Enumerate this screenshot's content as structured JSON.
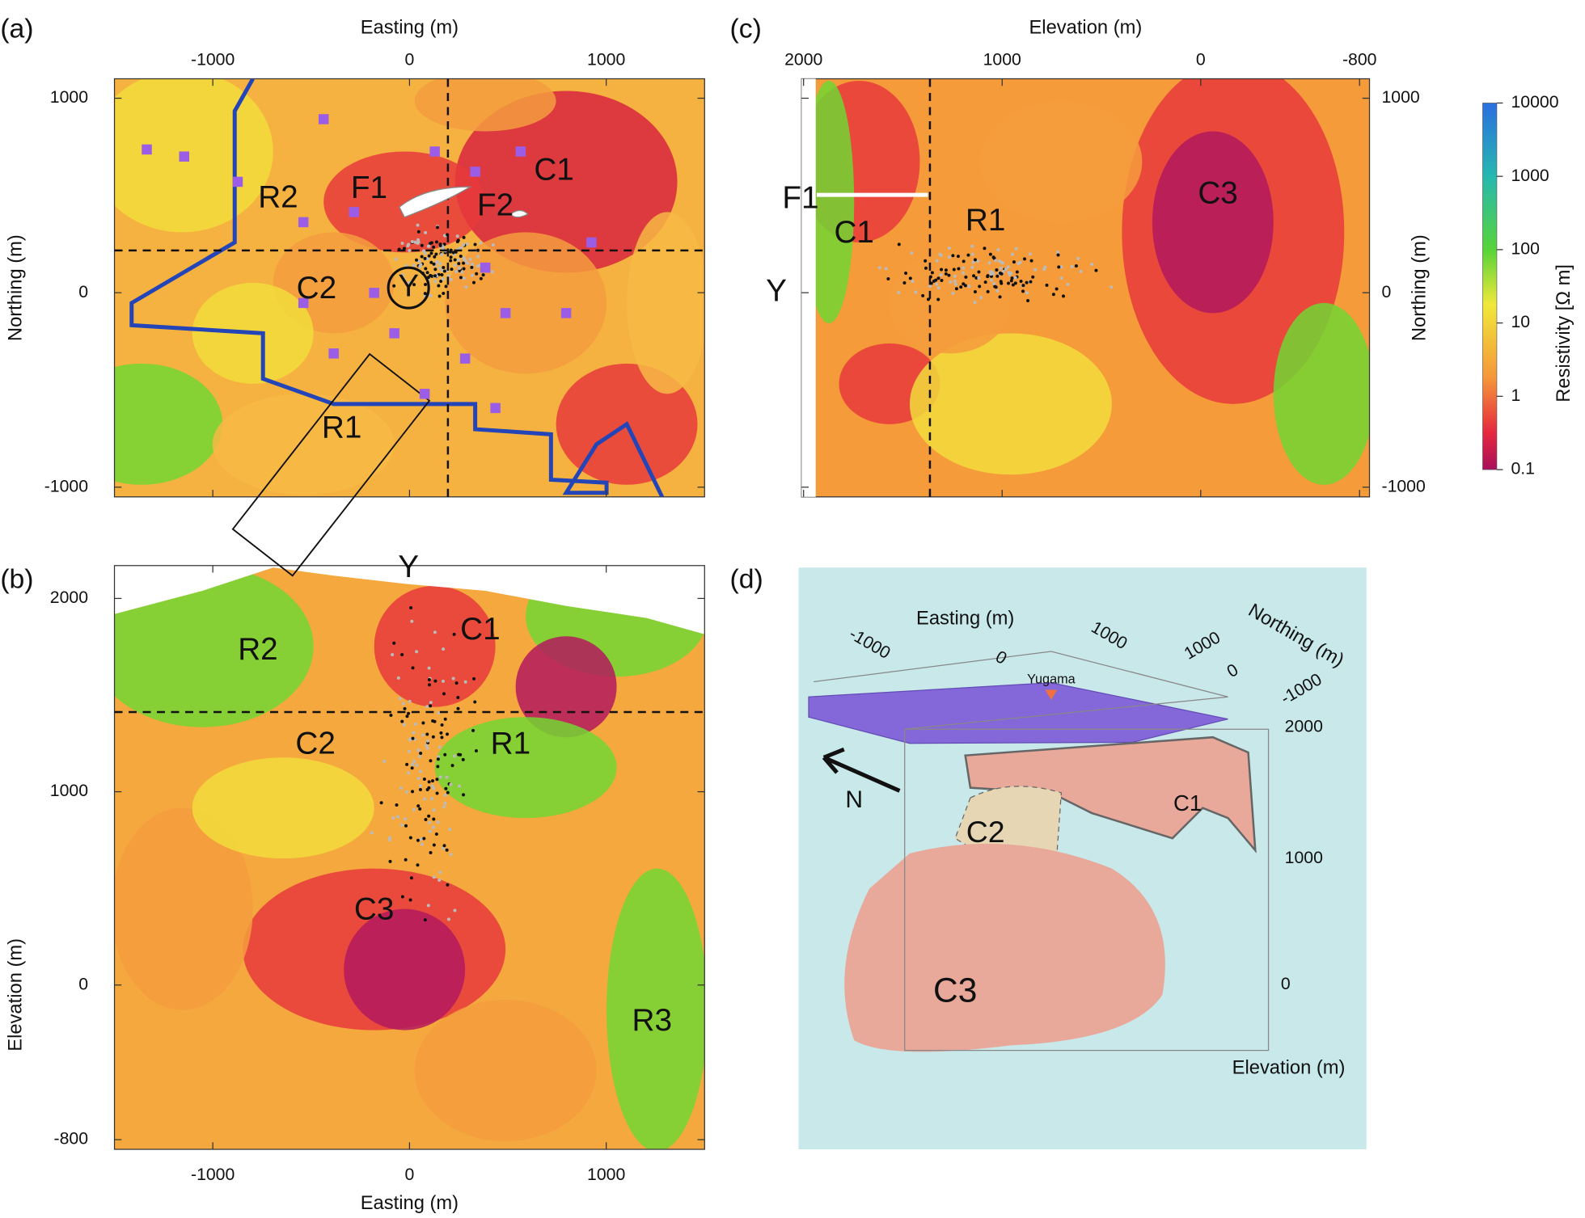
{
  "panels": [
    {
      "label": "(a)",
      "x_label": "Easting (m)",
      "y_label": "Northing (m)",
      "xlim": [
        -1500,
        1500
      ],
      "ylim": [
        -1050,
        1100
      ],
      "xticks": [
        -1000,
        0,
        1000
      ],
      "yticks": [
        -1000,
        0,
        1000
      ],
      "annotations": [
        "R2",
        "F1",
        "F2",
        "C1",
        "C2",
        "Y",
        "R1"
      ]
    },
    {
      "label": "(b)",
      "x_label": "Easting (m)",
      "y_label": "Elevation (m)",
      "xlim": [
        -1500,
        1500
      ],
      "ylim": [
        -850,
        2170
      ],
      "xticks": [
        -1000,
        0,
        1000
      ],
      "yticks": [
        -800,
        0,
        1000,
        2000
      ],
      "annotations": [
        "Y",
        "R2",
        "C1",
        "C2",
        "R1",
        "C3",
        "R3"
      ]
    },
    {
      "label": "(c)",
      "x_label": "Elevation (m)",
      "y_label": "Northing (m)",
      "xlim": [
        2010,
        -850
      ],
      "ylim": [
        -1050,
        1100
      ],
      "xticks": [
        2000,
        1000,
        0,
        -800
      ],
      "yticks": [
        -1000,
        0,
        1000
      ],
      "annotations": [
        "F1",
        "C1",
        "R1",
        "C3",
        "Y"
      ]
    },
    {
      "label": "(d)",
      "x_label": "Easting (m)",
      "y_label": "Northing (m)",
      "z_label": "Elevation (m)",
      "x_ticks": [
        -1000,
        0,
        1000
      ],
      "y_ticks": [
        1000,
        0,
        -1000
      ],
      "z_ticks": [
        2000,
        1000,
        0
      ],
      "annotations": [
        "Yugama",
        "C1",
        "C2",
        "C3",
        "N"
      ]
    }
  ],
  "colorbar": {
    "label": "Resistivity [Ω m]",
    "lim": [
      0.1,
      10000
    ],
    "ticks": [
      10000,
      1000,
      100,
      10,
      1,
      0.1
    ],
    "log": true
  }
}
